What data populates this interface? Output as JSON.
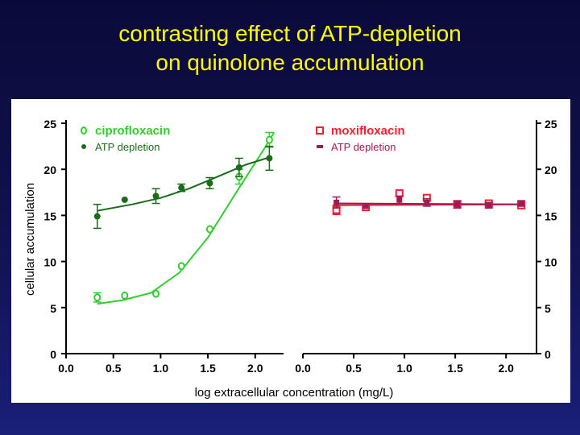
{
  "slide": {
    "title_line1": "contrasting effect of ATP-depletion",
    "title_line2": "on quinolone accumulation",
    "title_color": "#ffff00",
    "background_color": "#11124f"
  },
  "chart_data": [
    {
      "type": "scatter",
      "xlabel": "log extracellular concentration (mg/L)",
      "ylabel": "cellular accumulation",
      "xlim": [
        0.0,
        2.3
      ],
      "ylim": [
        0,
        25
      ],
      "xticks": [
        "0.0",
        "0.5",
        "1.0",
        "1.5",
        "2.0"
      ],
      "yticks": [
        "0",
        "5",
        "10",
        "15",
        "20",
        "25"
      ],
      "y_axis_side": "left",
      "grid": false,
      "legend_position": "top-left",
      "series": [
        {
          "name": "ciprofloxacin",
          "color": "#33cc33",
          "marker": "open-circle",
          "x": [
            0.33,
            0.62,
            0.95,
            1.22,
            1.52,
            1.83,
            2.15
          ],
          "y": [
            6.1,
            6.3,
            6.5,
            9.5,
            13.5,
            19.2,
            23.2
          ],
          "error": [
            0.5,
            0.0,
            0.0,
            0.0,
            0.0,
            0.8,
            0.8
          ],
          "fit": [
            [
              0.33,
              5.4
            ],
            [
              0.6,
              5.8
            ],
            [
              0.9,
              6.6
            ],
            [
              1.2,
              8.8
            ],
            [
              1.5,
              12.6
            ],
            [
              1.8,
              17.5
            ],
            [
              2.1,
              22.3
            ],
            [
              2.2,
              24.0
            ]
          ]
        },
        {
          "name": "ATP depletion",
          "color": "#1a6b1a",
          "marker": "filled-circle",
          "x": [
            0.33,
            0.62,
            0.95,
            1.22,
            1.52,
            1.83,
            2.15
          ],
          "y": [
            14.9,
            16.7,
            17.1,
            18.0,
            18.5,
            20.2,
            21.2
          ],
          "error": [
            1.3,
            0.0,
            0.8,
            0.4,
            0.6,
            1.0,
            1.3
          ],
          "fit": [
            [
              0.33,
              15.5
            ],
            [
              0.7,
              16.2
            ],
            [
              1.0,
              16.9
            ],
            [
              1.3,
              17.9
            ],
            [
              1.6,
              19.2
            ],
            [
              1.9,
              20.5
            ],
            [
              2.15,
              21.3
            ]
          ]
        }
      ]
    },
    {
      "type": "scatter",
      "xlabel": "",
      "ylabel": "",
      "xlim": [
        0.0,
        2.3
      ],
      "ylim": [
        0,
        25
      ],
      "xticks": [
        "0.0",
        "0.5",
        "1.0",
        "1.5",
        "2.0"
      ],
      "yticks": [
        "0",
        "5",
        "10",
        "15",
        "20",
        "25"
      ],
      "y_axis_side": "right",
      "grid": false,
      "legend_position": "top-left",
      "series": [
        {
          "name": "moxifloxacin",
          "color": "#ee2233",
          "marker": "open-square",
          "x": [
            0.33,
            0.62,
            0.95,
            1.22,
            1.52,
            1.83,
            2.15
          ],
          "y": [
            15.6,
            15.9,
            17.4,
            16.9,
            16.2,
            16.3,
            16.1
          ],
          "error": [
            0.5,
            0.0,
            0.0,
            0.0,
            0.3,
            0.3,
            0.3
          ],
          "fit": [
            [
              0.33,
              16.1
            ],
            [
              2.15,
              16.2
            ]
          ]
        },
        {
          "name": "ATP depletion",
          "color": "#a01a55",
          "marker": "filled-square",
          "x": [
            0.33,
            0.62,
            0.95,
            1.22,
            1.52,
            1.83,
            2.15
          ],
          "y": [
            16.4,
            16.0,
            16.7,
            16.4,
            16.2,
            16.1,
            16.3
          ],
          "error": [
            0.6,
            0.0,
            0.4,
            0.4,
            0.4,
            0.3,
            0.3
          ],
          "fit": [
            [
              0.33,
              16.3
            ],
            [
              2.15,
              16.2
            ]
          ]
        }
      ]
    }
  ]
}
